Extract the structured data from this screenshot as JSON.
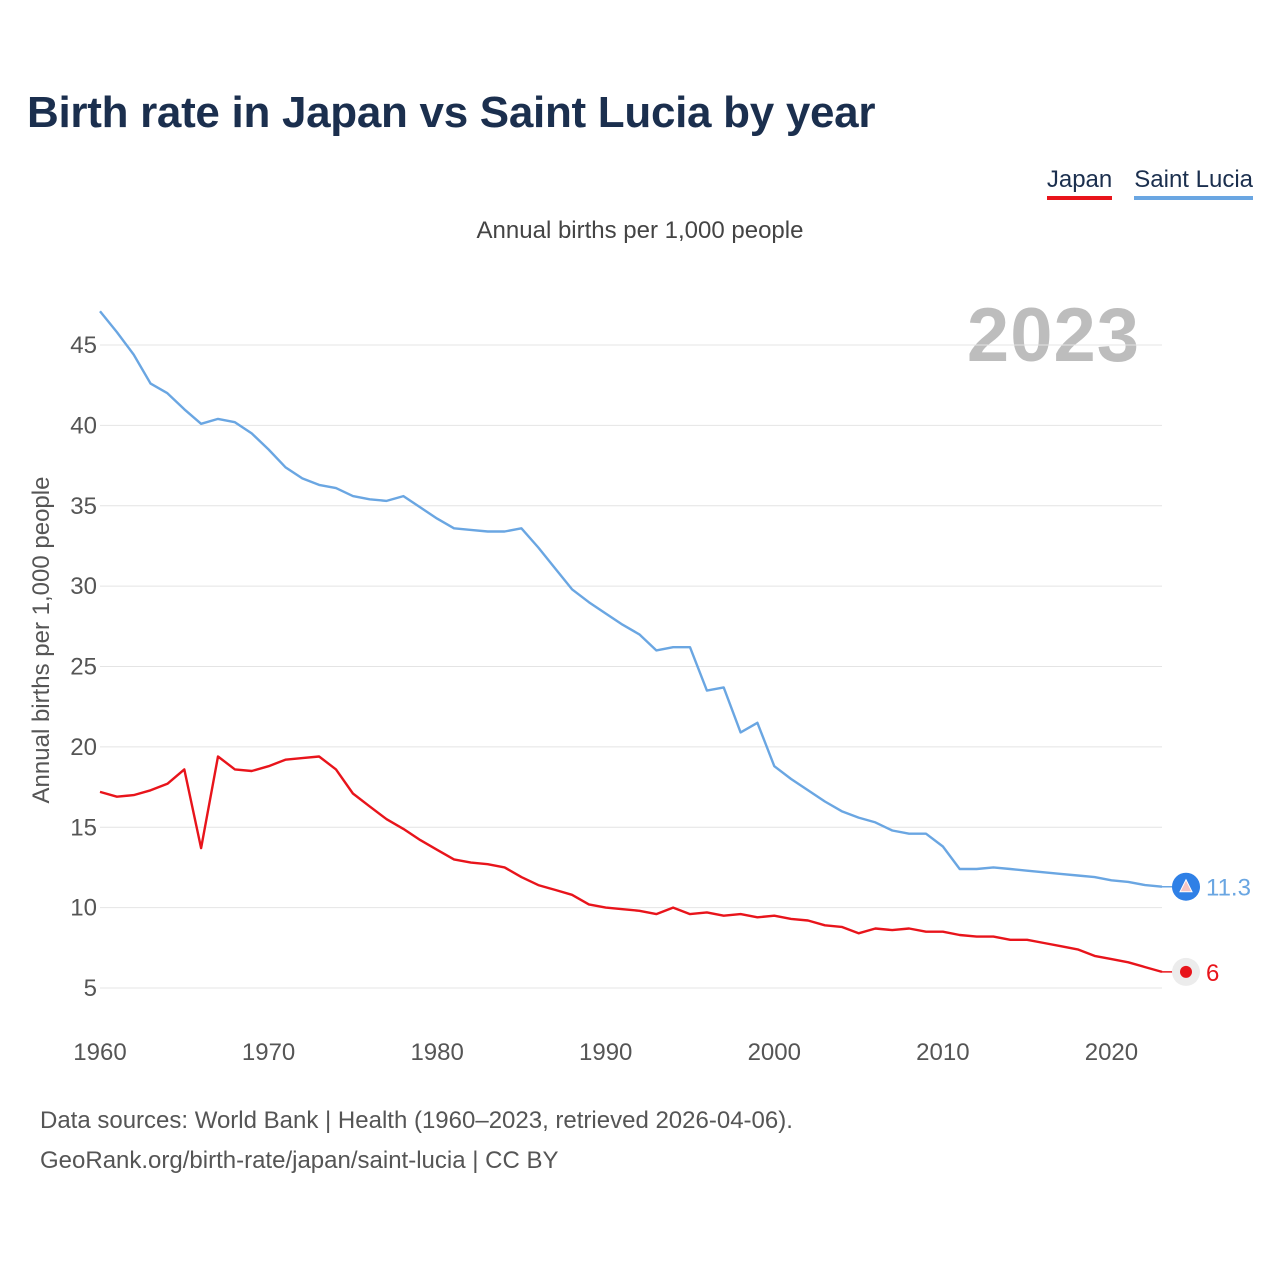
{
  "chart_data": {
    "type": "line",
    "title": "Birth rate in Japan vs Saint Lucia by year",
    "subtitle": "Annual births per 1,000 people",
    "ylabel": "Annual births per 1,000 people",
    "xlabel": "",
    "highlight_year": "2023",
    "xlim": [
      1960,
      2023
    ],
    "ylim": [
      3,
      47.5
    ],
    "x_ticks": [
      1960,
      1970,
      1980,
      1990,
      2000,
      2010,
      2020
    ],
    "y_ticks": [
      5,
      10,
      15,
      20,
      25,
      30,
      35,
      40,
      45
    ],
    "grid": true,
    "legend_position": "top-right",
    "x": [
      1960,
      1961,
      1962,
      1963,
      1964,
      1965,
      1966,
      1967,
      1968,
      1969,
      1970,
      1971,
      1972,
      1973,
      1974,
      1975,
      1976,
      1977,
      1978,
      1979,
      1980,
      1981,
      1982,
      1983,
      1984,
      1985,
      1986,
      1987,
      1988,
      1989,
      1990,
      1991,
      1992,
      1993,
      1994,
      1995,
      1996,
      1997,
      1998,
      1999,
      2000,
      2001,
      2002,
      2003,
      2004,
      2005,
      2006,
      2007,
      2008,
      2009,
      2010,
      2011,
      2012,
      2013,
      2014,
      2015,
      2016,
      2017,
      2018,
      2019,
      2020,
      2021,
      2022,
      2023
    ],
    "series": [
      {
        "name": "Japan",
        "color": "#e8141b",
        "end_label": "6",
        "values": [
          17.2,
          16.9,
          17.0,
          17.3,
          17.7,
          18.6,
          13.7,
          19.4,
          18.6,
          18.5,
          18.8,
          19.2,
          19.3,
          19.4,
          18.6,
          17.1,
          16.3,
          15.5,
          14.9,
          14.2,
          13.6,
          13.0,
          12.8,
          12.7,
          12.5,
          11.9,
          11.4,
          11.1,
          10.8,
          10.2,
          10.0,
          9.9,
          9.8,
          9.6,
          10.0,
          9.6,
          9.7,
          9.5,
          9.6,
          9.4,
          9.5,
          9.3,
          9.2,
          8.9,
          8.8,
          8.4,
          8.7,
          8.6,
          8.7,
          8.5,
          8.5,
          8.3,
          8.2,
          8.2,
          8.0,
          8.0,
          7.8,
          7.6,
          7.4,
          7.0,
          6.8,
          6.6,
          6.3,
          6.0
        ]
      },
      {
        "name": "Saint Lucia",
        "color": "#6aa6e2",
        "end_label": "11.3",
        "values": [
          47.1,
          45.8,
          44.4,
          42.6,
          42.0,
          41.0,
          40.1,
          40.4,
          40.2,
          39.5,
          38.5,
          37.4,
          36.7,
          36.3,
          36.1,
          35.6,
          35.4,
          35.3,
          35.6,
          34.9,
          34.2,
          33.6,
          33.5,
          33.4,
          33.4,
          33.6,
          32.4,
          31.1,
          29.8,
          29.0,
          28.3,
          27.6,
          27.0,
          26.0,
          26.2,
          26.2,
          23.5,
          23.7,
          20.9,
          21.5,
          18.8,
          18.0,
          17.3,
          16.6,
          16.0,
          15.6,
          15.3,
          14.8,
          14.6,
          14.6,
          13.8,
          12.4,
          12.4,
          12.5,
          12.4,
          12.3,
          12.2,
          12.1,
          12.0,
          11.9,
          11.7,
          11.6,
          11.4,
          11.3
        ]
      }
    ]
  },
  "footer": {
    "line1": "Data sources: World Bank | Health (1960–2023, retrieved 2026-04-06).",
    "line2": "GeoRank.org/birth-rate/japan/saint-lucia | CC BY"
  }
}
